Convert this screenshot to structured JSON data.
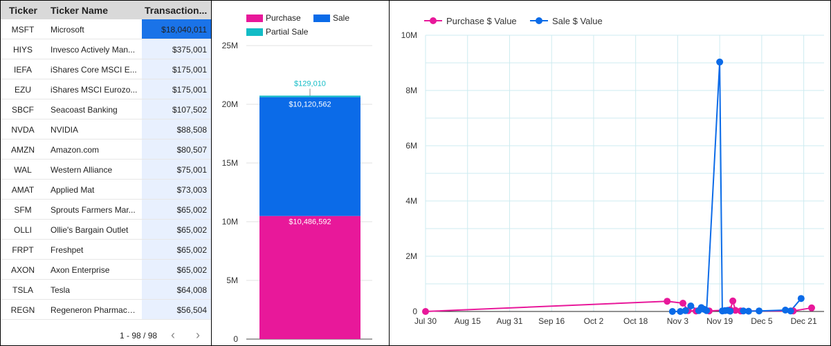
{
  "table": {
    "headers": {
      "ticker": "Ticker",
      "name": "Ticker Name",
      "amount": "Transaction..."
    },
    "rows": [
      {
        "ticker": "MSFT",
        "name": "Microsoft",
        "amount": "$18,040,011",
        "value": 18040011
      },
      {
        "ticker": "HIYS",
        "name": "Invesco Actively Man...",
        "amount": "$375,001",
        "value": 375001
      },
      {
        "ticker": "IEFA",
        "name": "iShares Core MSCI E...",
        "amount": "$175,001",
        "value": 175001
      },
      {
        "ticker": "EZU",
        "name": "iShares MSCI Eurozo...",
        "amount": "$175,001",
        "value": 175001
      },
      {
        "ticker": "SBCF",
        "name": "Seacoast Banking",
        "amount": "$107,502",
        "value": 107502
      },
      {
        "ticker": "NVDA",
        "name": "NVIDIA",
        "amount": "$88,508",
        "value": 88508
      },
      {
        "ticker": "AMZN",
        "name": "Amazon.com",
        "amount": "$80,507",
        "value": 80507
      },
      {
        "ticker": "WAL",
        "name": "Western Alliance",
        "amount": "$75,001",
        "value": 75001
      },
      {
        "ticker": "AMAT",
        "name": "Applied Mat",
        "amount": "$73,003",
        "value": 73003
      },
      {
        "ticker": "SFM",
        "name": "Sprouts Farmers Mar...",
        "amount": "$65,002",
        "value": 65002
      },
      {
        "ticker": "OLLI",
        "name": "Ollie's Bargain Outlet",
        "amount": "$65,002",
        "value": 65002
      },
      {
        "ticker": "FRPT",
        "name": "Freshpet",
        "amount": "$65,002",
        "value": 65002
      },
      {
        "ticker": "AXON",
        "name": "Axon Enterprise",
        "amount": "$65,002",
        "value": 65002
      },
      {
        "ticker": "TSLA",
        "name": "Tesla",
        "amount": "$64,008",
        "value": 64008
      },
      {
        "ticker": "REGN",
        "name": "Regeneron Pharmace...",
        "amount": "$56,504",
        "value": 56504
      }
    ],
    "bar_max": 18040011,
    "bar_colors": {
      "strong": "#1a73e8",
      "light": "#e8f0fe"
    },
    "pagination": "1 - 98 / 98",
    "prev_icon": "‹",
    "next_icon": "›"
  },
  "chart_data": [
    {
      "type": "bar",
      "stacked": true,
      "categories": [
        ""
      ],
      "series": [
        {
          "name": "Purchase",
          "values": [
            10486592
          ],
          "label": "$10,486,592",
          "color": "#e8189a"
        },
        {
          "name": "Sale",
          "values": [
            10120562
          ],
          "label": "$10,120,562",
          "color": "#0b6be8"
        },
        {
          "name": "Partial Sale",
          "values": [
            129010
          ],
          "label": "$129,010",
          "color": "#12bcc6"
        }
      ],
      "ylim": [
        0,
        25000000
      ],
      "yticks": [
        0,
        5000000,
        10000000,
        15000000,
        20000000,
        25000000
      ],
      "ytick_labels": [
        "0",
        "5M",
        "10M",
        "15M",
        "20M",
        "25M"
      ],
      "grid": true,
      "legend_position": "top-left"
    },
    {
      "type": "line",
      "x_type": "date",
      "xlim": [
        "2024-07-30",
        "2024-12-24"
      ],
      "xticks": [
        "2024-07-30",
        "2024-08-15",
        "2024-08-31",
        "2024-09-16",
        "2024-10-02",
        "2024-10-18",
        "2024-11-03",
        "2024-11-19",
        "2024-12-05",
        "2024-12-21"
      ],
      "xtick_labels": [
        "Jul 30",
        "Aug 15",
        "Aug 31",
        "Sep 16",
        "Oct 2",
        "Oct 18",
        "Nov 3",
        "Nov 19",
        "Dec 5",
        "Dec 21"
      ],
      "ylim": [
        0,
        10000000
      ],
      "yticks": [
        0,
        2000000,
        4000000,
        6000000,
        8000000,
        10000000
      ],
      "ytick_labels": [
        "0",
        "2M",
        "4M",
        "6M",
        "8M",
        "10M"
      ],
      "grid": true,
      "legend_position": "top-left",
      "series": [
        {
          "name": "Purchase $ Value",
          "color": "#e8189a",
          "points": [
            {
              "x": "2024-07-30",
              "y": 0
            },
            {
              "x": "2024-10-30",
              "y": 370000
            },
            {
              "x": "2024-11-05",
              "y": 300000
            },
            {
              "x": "2024-11-07",
              "y": 30000
            },
            {
              "x": "2024-11-10",
              "y": 15000
            },
            {
              "x": "2024-11-15",
              "y": 20000
            },
            {
              "x": "2024-11-23",
              "y": 60000
            },
            {
              "x": "2024-11-24",
              "y": 380000
            },
            {
              "x": "2024-11-25",
              "y": 40000
            },
            {
              "x": "2024-11-27",
              "y": 20000
            },
            {
              "x": "2024-12-17",
              "y": 20000
            },
            {
              "x": "2024-12-24",
              "y": 130000
            }
          ]
        },
        {
          "name": "Sale $ Value",
          "color": "#0b6be8",
          "points": [
            {
              "x": "2024-11-01",
              "y": 0
            },
            {
              "x": "2024-11-04",
              "y": 0
            },
            {
              "x": "2024-11-06",
              "y": 30000
            },
            {
              "x": "2024-11-08",
              "y": 200000
            },
            {
              "x": "2024-11-11",
              "y": 30000
            },
            {
              "x": "2024-11-12",
              "y": 140000
            },
            {
              "x": "2024-11-13",
              "y": 80000
            },
            {
              "x": "2024-11-14",
              "y": 30000
            },
            {
              "x": "2024-11-19",
              "y": 9030000
            },
            {
              "x": "2024-11-20",
              "y": 20000
            },
            {
              "x": "2024-11-21",
              "y": 30000
            },
            {
              "x": "2024-11-22",
              "y": 40000
            },
            {
              "x": "2024-11-23",
              "y": 10000
            },
            {
              "x": "2024-11-28",
              "y": 20000
            },
            {
              "x": "2024-11-30",
              "y": 10000
            },
            {
              "x": "2024-12-04",
              "y": 20000
            },
            {
              "x": "2024-12-14",
              "y": 50000
            },
            {
              "x": "2024-12-16",
              "y": 20000
            },
            {
              "x": "2024-12-20",
              "y": 470000
            }
          ]
        }
      ]
    }
  ]
}
